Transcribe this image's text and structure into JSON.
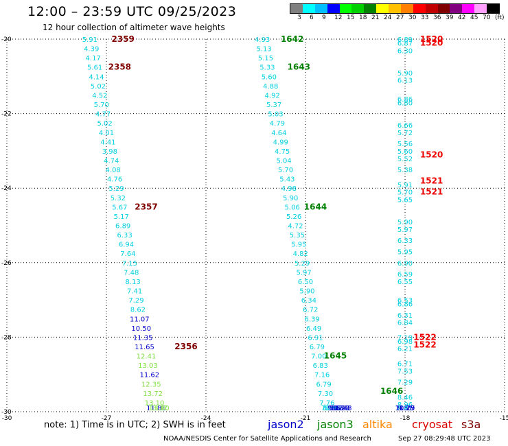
{
  "title": "12:00 – 23:59 UTC 09/25/2023",
  "subtitle": "12 hour collection of altimeter wave heights",
  "note": "note:  1) Time is in UTC; 2) SWH is in feet",
  "footer_left": "NOAA/NESDIS Center for Satellite Applications and Research",
  "footer_right": "Sep 27 08:29:48 UTC 2023",
  "colorbar": {
    "colors": [
      "#808080",
      "#00ffff",
      "#00bfff",
      "#0000ff",
      "#00ff00",
      "#00d000",
      "#008000",
      "#ffff00",
      "#ffc000",
      "#ff8000",
      "#ff0000",
      "#c00000",
      "#800000",
      "#800080",
      "#ff00ff",
      "#ffa0ff",
      "#000000"
    ],
    "labels": [
      "3",
      "6",
      "9",
      "12",
      "15",
      "18",
      "21",
      "24",
      "27",
      "30",
      "33",
      "36",
      "39",
      "42",
      "45",
      "70",
      "(ft)"
    ]
  },
  "satellites": [
    {
      "name": "jason2",
      "color": "#0000cc"
    },
    {
      "name": "jason3",
      "color": "#008000"
    },
    {
      "name": "altika",
      "color": "#ff8800"
    },
    {
      "name": "cryosat",
      "color": "#dd0000"
    },
    {
      "name": "s3a",
      "color": "#800000"
    }
  ],
  "chart_data": {
    "type": "scatter",
    "title": "12:00 – 23:59 UTC 09/25/2023",
    "subtitle": "12 hour collection of altimeter wave heights",
    "xlim": [
      -30,
      -15
    ],
    "ylim": [
      -30,
      -20
    ],
    "x_ticks": [
      -30,
      -27,
      -24,
      -21,
      -18,
      -15
    ],
    "y_ticks": [
      -20,
      -22,
      -24,
      -26,
      -28,
      -30
    ],
    "grid": true,
    "tracks": [
      {
        "satellite": "s3a",
        "points": [
          {
            "x": -27.5,
            "y": -20.0,
            "v": "5.91"
          },
          {
            "x": -27.45,
            "y": -20.25,
            "v": "4.39"
          },
          {
            "x": -27.4,
            "y": -20.5,
            "v": "4.17"
          },
          {
            "x": -27.35,
            "y": -20.75,
            "v": "5.61"
          },
          {
            "x": -27.3,
            "y": -21.0,
            "v": "4.14"
          },
          {
            "x": -27.25,
            "y": -21.25,
            "v": "5.02"
          },
          {
            "x": -27.2,
            "y": -21.5,
            "v": "4.52"
          },
          {
            "x": -27.15,
            "y": -21.75,
            "v": "5.70"
          },
          {
            "x": -27.1,
            "y": -22.0,
            "v": "4.77"
          },
          {
            "x": -27.05,
            "y": -22.25,
            "v": "5.02"
          },
          {
            "x": -27.0,
            "y": -22.5,
            "v": "4.01"
          },
          {
            "x": -26.95,
            "y": -22.75,
            "v": "4.41"
          },
          {
            "x": -26.9,
            "y": -23.0,
            "v": "3.98"
          },
          {
            "x": -26.85,
            "y": -23.25,
            "v": "4.74"
          },
          {
            "x": -26.8,
            "y": -23.5,
            "v": "4.08"
          },
          {
            "x": -26.75,
            "y": -23.75,
            "v": "4.76"
          },
          {
            "x": -26.7,
            "y": -24.0,
            "v": "5.29"
          },
          {
            "x": -26.65,
            "y": -24.25,
            "v": "5.32"
          },
          {
            "x": -26.6,
            "y": -24.5,
            "v": "5.67"
          },
          {
            "x": -26.55,
            "y": -24.75,
            "v": "5.17"
          },
          {
            "x": -26.5,
            "y": -25.0,
            "v": "6.89"
          },
          {
            "x": -26.45,
            "y": -25.25,
            "v": "6.33"
          },
          {
            "x": -26.4,
            "y": -25.5,
            "v": "6.94"
          },
          {
            "x": -26.35,
            "y": -25.75,
            "v": "7.64"
          },
          {
            "x": -26.3,
            "y": -26.0,
            "v": "7.15"
          },
          {
            "x": -26.25,
            "y": -26.25,
            "v": "7.48"
          },
          {
            "x": -26.2,
            "y": -26.5,
            "v": "8.13"
          },
          {
            "x": -26.15,
            "y": -26.75,
            "v": "7.41"
          },
          {
            "x": -26.1,
            "y": -27.0,
            "v": "7.29"
          },
          {
            "x": -26.05,
            "y": -27.25,
            "v": "8.62"
          },
          {
            "x": -26.0,
            "y": -27.5,
            "v": "11.07"
          },
          {
            "x": -25.95,
            "y": -27.75,
            "v": "10.50"
          },
          {
            "x": -25.9,
            "y": -28.0,
            "v": "11.35"
          },
          {
            "x": -25.85,
            "y": -28.25,
            "v": "11.65"
          },
          {
            "x": -25.8,
            "y": -28.5,
            "v": "12.41"
          },
          {
            "x": -25.75,
            "y": -28.75,
            "v": "13.03"
          },
          {
            "x": -25.7,
            "y": -29.0,
            "v": "11.62"
          },
          {
            "x": -25.65,
            "y": -29.25,
            "v": "12.35"
          },
          {
            "x": -25.6,
            "y": -29.5,
            "v": "13.72"
          },
          {
            "x": -25.55,
            "y": -29.75,
            "v": "13.10"
          },
          {
            "x": -25.5,
            "y": -30.0,
            "v": "11.81"
          },
          {
            "x": -25.45,
            "y": -30.25,
            "v": "13.37"
          },
          {
            "x": -25.4,
            "y": -30.5,
            "v": "13.80"
          }
        ],
        "times": [
          {
            "x": -26.5,
            "y": -20.0,
            "v": "2359"
          },
          {
            "x": -26.6,
            "y": -20.75,
            "v": "2358"
          },
          {
            "x": -25.8,
            "y": -24.5,
            "v": "2357"
          },
          {
            "x": -24.6,
            "y": -28.25,
            "v": "2356"
          }
        ]
      },
      {
        "satellite": "jason3",
        "points": [
          {
            "x": -22.3,
            "y": -20.0,
            "v": "4.93"
          },
          {
            "x": -22.25,
            "y": -20.25,
            "v": "5.13"
          },
          {
            "x": -22.2,
            "y": -20.5,
            "v": "5.15"
          },
          {
            "x": -22.15,
            "y": -20.75,
            "v": "5.33"
          },
          {
            "x": -22.1,
            "y": -21.0,
            "v": "5.60"
          },
          {
            "x": -22.05,
            "y": -21.25,
            "v": "4.88"
          },
          {
            "x": -22.0,
            "y": -21.5,
            "v": "4.92"
          },
          {
            "x": -21.95,
            "y": -21.75,
            "v": "5.37"
          },
          {
            "x": -21.9,
            "y": -22.0,
            "v": "5.03"
          },
          {
            "x": -21.85,
            "y": -22.25,
            "v": "4.79"
          },
          {
            "x": -21.8,
            "y": -22.5,
            "v": "4.64"
          },
          {
            "x": -21.75,
            "y": -22.75,
            "v": "4.99"
          },
          {
            "x": -21.7,
            "y": -23.0,
            "v": "4.75"
          },
          {
            "x": -21.65,
            "y": -23.25,
            "v": "5.04"
          },
          {
            "x": -21.6,
            "y": -23.5,
            "v": "5.70"
          },
          {
            "x": -21.55,
            "y": -23.75,
            "v": "5.43"
          },
          {
            "x": -21.5,
            "y": -24.0,
            "v": "4.98"
          },
          {
            "x": -21.45,
            "y": -24.25,
            "v": "5.90"
          },
          {
            "x": -21.4,
            "y": -24.5,
            "v": "5.06"
          },
          {
            "x": -21.35,
            "y": -24.75,
            "v": "5.26"
          },
          {
            "x": -21.3,
            "y": -25.0,
            "v": "4.72"
          },
          {
            "x": -21.25,
            "y": -25.25,
            "v": "5.35"
          },
          {
            "x": -21.2,
            "y": -25.5,
            "v": "5.95"
          },
          {
            "x": -21.15,
            "y": -25.75,
            "v": "4.82"
          },
          {
            "x": -21.1,
            "y": -26.0,
            "v": "5.29"
          },
          {
            "x": -21.05,
            "y": -26.25,
            "v": "5.97"
          },
          {
            "x": -21.0,
            "y": -26.5,
            "v": "6.50"
          },
          {
            "x": -20.95,
            "y": -26.75,
            "v": "5.90"
          },
          {
            "x": -20.9,
            "y": -27.0,
            "v": "6.34"
          },
          {
            "x": -20.85,
            "y": -27.25,
            "v": "6.72"
          },
          {
            "x": -20.8,
            "y": -27.5,
            "v": "6.39"
          },
          {
            "x": -20.75,
            "y": -27.75,
            "v": "6.49"
          },
          {
            "x": -20.7,
            "y": -28.0,
            "v": "6.91"
          },
          {
            "x": -20.65,
            "y": -28.25,
            "v": "6.79"
          },
          {
            "x": -20.6,
            "y": -28.5,
            "v": "7.00"
          },
          {
            "x": -20.55,
            "y": -28.75,
            "v": "6.83"
          },
          {
            "x": -20.5,
            "y": -29.0,
            "v": "7.16"
          },
          {
            "x": -20.45,
            "y": -29.25,
            "v": "6.79"
          },
          {
            "x": -20.4,
            "y": -29.5,
            "v": "7.30"
          },
          {
            "x": -20.35,
            "y": -29.75,
            "v": "7.76"
          },
          {
            "x": -20.3,
            "y": -30.0,
            "v": "7.28"
          },
          {
            "x": -20.25,
            "y": -30.25,
            "v": "8.37"
          },
          {
            "x": -20.2,
            "y": -30.5,
            "v": "8.34"
          },
          {
            "x": -20.15,
            "y": -30.75,
            "v": "7.93"
          },
          {
            "x": -20.1,
            "y": -31.0,
            "v": "9.27"
          },
          {
            "x": -20.05,
            "y": -31.25,
            "v": "9.67"
          },
          {
            "x": -20.0,
            "y": -31.5,
            "v": "10.34"
          },
          {
            "x": -19.95,
            "y": -31.75,
            "v": "10.33"
          },
          {
            "x": -19.9,
            "y": -32.0,
            "v": "10.48"
          }
        ],
        "times": [
          {
            "x": -21.4,
            "y": -20.0,
            "v": "1642"
          },
          {
            "x": -21.2,
            "y": -20.75,
            "v": "1643"
          },
          {
            "x": -20.7,
            "y": -24.5,
            "v": "1644"
          },
          {
            "x": -20.1,
            "y": -28.5,
            "v": "1645"
          },
          {
            "x": -18.4,
            "y": -31.5,
            "v": "1646"
          }
        ]
      },
      {
        "satellite": "cryosat",
        "points": [
          {
            "x": -18.0,
            "y": -20.0,
            "v": "6.89"
          },
          {
            "x": -18.0,
            "y": -20.1,
            "v": "6.87"
          },
          {
            "x": -18.0,
            "y": -20.3,
            "v": "6.30"
          },
          {
            "x": -18.0,
            "y": -20.9,
            "v": "5.90"
          },
          {
            "x": -18.0,
            "y": -21.1,
            "v": "6.13"
          },
          {
            "x": -18.0,
            "y": -21.6,
            "v": "6.86"
          },
          {
            "x": -18.0,
            "y": -21.7,
            "v": "6.80"
          },
          {
            "x": -18.0,
            "y": -22.3,
            "v": "6.66"
          },
          {
            "x": -18.0,
            "y": -22.5,
            "v": "5.72"
          },
          {
            "x": -18.0,
            "y": -22.8,
            "v": "5.56"
          },
          {
            "x": -18.0,
            "y": -23.0,
            "v": "5.60"
          },
          {
            "x": -18.0,
            "y": -23.2,
            "v": "5.52"
          },
          {
            "x": -18.0,
            "y": -23.5,
            "v": "5.38"
          },
          {
            "x": -18.0,
            "y": -23.9,
            "v": "5.91"
          },
          {
            "x": -18.0,
            "y": -24.1,
            "v": "5.70"
          },
          {
            "x": -18.0,
            "y": -24.3,
            "v": "5.65"
          },
          {
            "x": -18.0,
            "y": -24.9,
            "v": "5.90"
          },
          {
            "x": -18.0,
            "y": -25.1,
            "v": "5.97"
          },
          {
            "x": -18.0,
            "y": -25.4,
            "v": "6.33"
          },
          {
            "x": -18.0,
            "y": -25.7,
            "v": "5.95"
          },
          {
            "x": -18.0,
            "y": -26.0,
            "v": "6.90"
          },
          {
            "x": -18.0,
            "y": -26.3,
            "v": "6.59"
          },
          {
            "x": -18.0,
            "y": -26.5,
            "v": "6.55"
          },
          {
            "x": -18.0,
            "y": -27.0,
            "v": "6.53"
          },
          {
            "x": -18.0,
            "y": -27.1,
            "v": "6.86"
          },
          {
            "x": -18.0,
            "y": -27.4,
            "v": "6.31"
          },
          {
            "x": -18.0,
            "y": -27.6,
            "v": "6.84"
          },
          {
            "x": -18.0,
            "y": -28.0,
            "v": "7.19"
          },
          {
            "x": -18.0,
            "y": -28.1,
            "v": "6.98"
          },
          {
            "x": -18.0,
            "y": -28.3,
            "v": "6.21"
          },
          {
            "x": -18.0,
            "y": -28.7,
            "v": "6.71"
          },
          {
            "x": -18.0,
            "y": -28.9,
            "v": "7.53"
          },
          {
            "x": -18.0,
            "y": -29.2,
            "v": "7.29"
          },
          {
            "x": -18.0,
            "y": -29.6,
            "v": "8.46"
          },
          {
            "x": -18.0,
            "y": -29.8,
            "v": "8.96"
          },
          {
            "x": -18.0,
            "y": -30.0,
            "v": "8.41"
          },
          {
            "x": -18.0,
            "y": -30.2,
            "v": "8.81"
          },
          {
            "x": -18.0,
            "y": -30.5,
            "v": "9.51"
          },
          {
            "x": -18.0,
            "y": -30.7,
            "v": "10.79"
          },
          {
            "x": -18.0,
            "y": -30.9,
            "v": "11.27"
          },
          {
            "x": -18.0,
            "y": -31.1,
            "v": "11.15"
          }
        ],
        "times": [
          {
            "x": -17.2,
            "y": -20.0,
            "v": "1520"
          },
          {
            "x": -17.2,
            "y": -20.1,
            "v": "1520"
          },
          {
            "x": -17.2,
            "y": -23.1,
            "v": "1520"
          },
          {
            "x": -17.2,
            "y": -23.8,
            "v": "1521"
          },
          {
            "x": -17.2,
            "y": -24.1,
            "v": "1521"
          },
          {
            "x": -17.4,
            "y": -28.0,
            "v": "1522"
          },
          {
            "x": -17.4,
            "y": -28.2,
            "v": "1522"
          }
        ]
      }
    ]
  }
}
